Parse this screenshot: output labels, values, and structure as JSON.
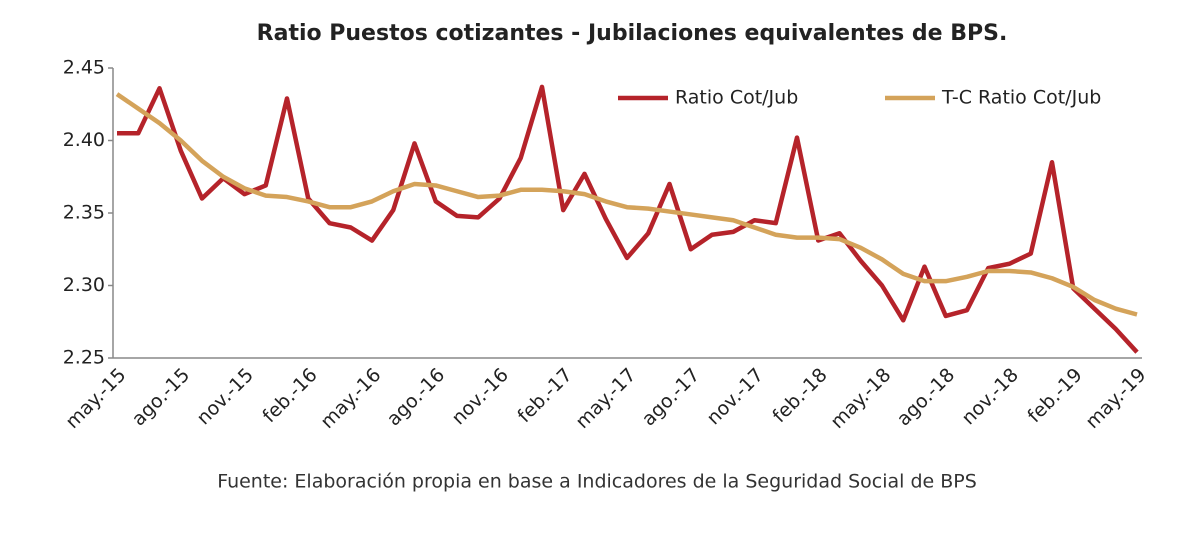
{
  "chart_data": {
    "type": "line",
    "title": "Ratio Puestos cotizantes - Jubilaciones  equivalentes de BPS.",
    "source": "Fuente: Elaboración propia en base a Indicadores de la Seguridad Social de BPS",
    "categories": [
      "may.-15",
      null,
      null,
      "ago.-15",
      null,
      null,
      "nov.-15",
      null,
      null,
      "feb.-16",
      null,
      null,
      "may.-16",
      null,
      null,
      "ago.-16",
      null,
      null,
      "nov.-16",
      null,
      null,
      "feb.-17",
      null,
      null,
      "may.-17",
      null,
      null,
      "ago.-17",
      null,
      null,
      "nov.-17",
      null,
      null,
      "feb.-18",
      null,
      null,
      "may.-18",
      null,
      null,
      "ago.-18",
      null,
      null,
      "nov.-18",
      null,
      null,
      "feb.-19",
      null,
      null,
      "may.-19"
    ],
    "series": [
      {
        "name": "Ratio Cot/Jub",
        "color": "#b5232a",
        "values": [
          2.405,
          2.405,
          2.436,
          2.393,
          2.36,
          2.374,
          2.363,
          2.369,
          2.429,
          2.36,
          2.343,
          2.34,
          2.331,
          2.352,
          2.398,
          2.358,
          2.348,
          2.347,
          2.36,
          2.388,
          2.437,
          2.352,
          2.377,
          2.346,
          2.319,
          2.336,
          2.37,
          2.325,
          2.335,
          2.337,
          2.345,
          2.343,
          2.402,
          2.331,
          2.336,
          2.317,
          2.3,
          2.276,
          2.313,
          2.279,
          2.283,
          2.312,
          2.315,
          2.322,
          2.385,
          2.298,
          2.284,
          2.27,
          2.254
        ]
      },
      {
        "name": "T-C Ratio Cot/Jub",
        "color": "#d4a35a",
        "values": [
          2.432,
          2.422,
          2.412,
          2.4,
          2.386,
          2.375,
          2.367,
          2.362,
          2.361,
          2.358,
          2.354,
          2.354,
          2.358,
          2.365,
          2.37,
          2.369,
          2.365,
          2.361,
          2.362,
          2.366,
          2.366,
          2.365,
          2.363,
          2.358,
          2.354,
          2.353,
          2.351,
          2.349,
          2.347,
          2.345,
          2.34,
          2.335,
          2.333,
          2.333,
          2.332,
          2.326,
          2.318,
          2.308,
          2.303,
          2.303,
          2.306,
          2.31,
          2.31,
          2.309,
          2.305,
          2.299,
          2.29,
          2.284,
          2.28
        ]
      }
    ],
    "ylim": [
      2.25,
      2.45
    ],
    "yticks": [
      2.25,
      {
        "value": 2.3,
        "label": "2.30"
      },
      2.35,
      {
        "value": 2.4,
        "label": "2.40"
      },
      2.45
    ],
    "grid": false,
    "legend": "top-right"
  }
}
